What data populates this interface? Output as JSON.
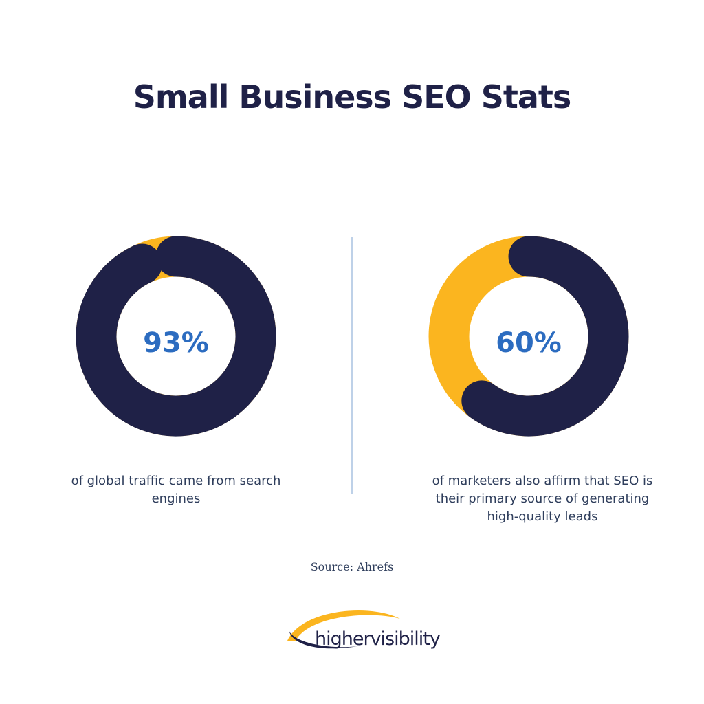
{
  "title": "Small Business SEO Stats",
  "chart_data": [
    {
      "type": "donut",
      "values": [
        93
      ],
      "value_labels": [
        "93%"
      ],
      "color": "#1f2147",
      "track_color": "#fbb51f",
      "caption": "of global traffic came from search engines"
    },
    {
      "type": "donut",
      "values": [
        60
      ],
      "value_labels": [
        "60%"
      ],
      "color": "#1f2147",
      "track_color": "#fbb51f",
      "caption": "of marketers also affirm that SEO is their primary source of generating high-quality leads"
    }
  ],
  "source": "Source: Ahrefs",
  "logo": "highervisibility"
}
